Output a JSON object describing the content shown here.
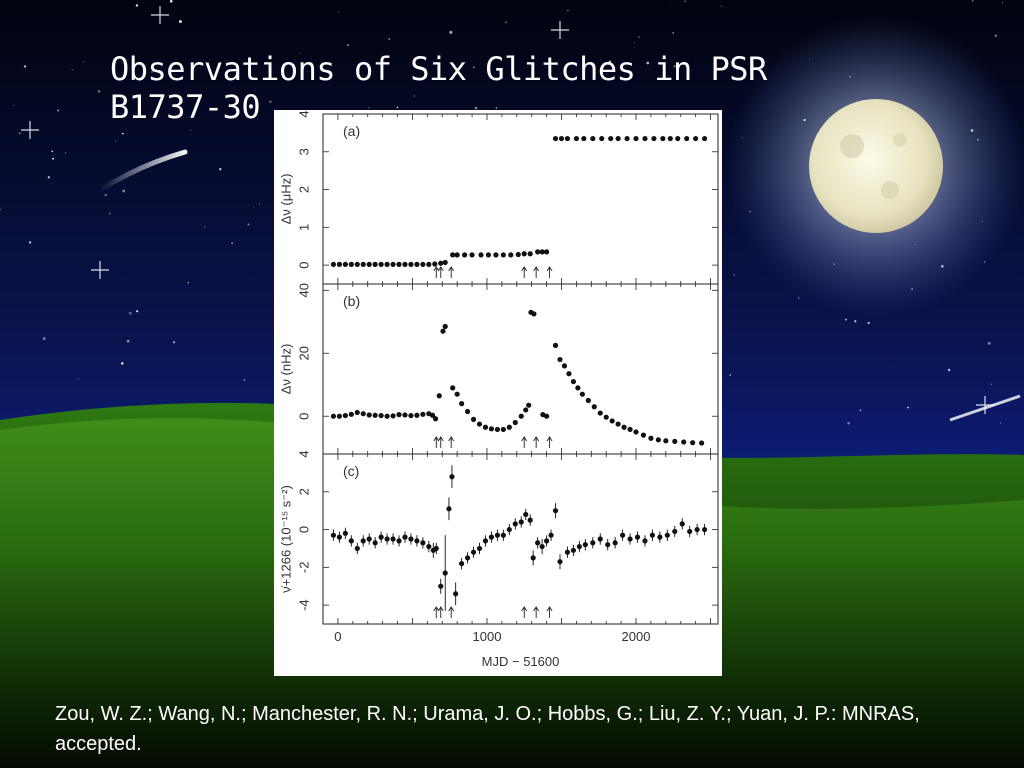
{
  "slide": {
    "title": "Observations of Six Glitches in PSR B1737-30",
    "caption": "Zou, W. Z.; Wang, N.; Manchester, R. N.; Urama, J. O.; Hobbs, G.; Liu, Z. Y.; Yuan, J. P.: MNRAS, accepted.",
    "colors": {
      "sky_top": "#020517",
      "sky_mid": "#0a1560",
      "grass": "#2f7a12",
      "text": "#ffffff"
    }
  },
  "chart_data": [
    {
      "type": "scatter",
      "panel_label": "(a)",
      "ylabel": "Δν (μHz)",
      "ylim": [
        -0.5,
        4
      ],
      "yticks": [
        0,
        1,
        2,
        3,
        4
      ],
      "xlim": [
        -100,
        2550
      ],
      "glitch_epochs": [
        660,
        690,
        760,
        1250,
        1330,
        1420
      ],
      "points": [
        [
          -30,
          0.02
        ],
        [
          10,
          0.02
        ],
        [
          50,
          0.02
        ],
        [
          90,
          0.02
        ],
        [
          130,
          0.02
        ],
        [
          170,
          0.02
        ],
        [
          210,
          0.02
        ],
        [
          250,
          0.02
        ],
        [
          290,
          0.02
        ],
        [
          330,
          0.02
        ],
        [
          370,
          0.02
        ],
        [
          410,
          0.02
        ],
        [
          450,
          0.02
        ],
        [
          490,
          0.02
        ],
        [
          530,
          0.02
        ],
        [
          570,
          0.02
        ],
        [
          610,
          0.02
        ],
        [
          650,
          0.03
        ],
        [
          690,
          0.05
        ],
        [
          720,
          0.07
        ],
        [
          770,
          0.27
        ],
        [
          800,
          0.27
        ],
        [
          850,
          0.27
        ],
        [
          900,
          0.27
        ],
        [
          960,
          0.27
        ],
        [
          1010,
          0.27
        ],
        [
          1060,
          0.27
        ],
        [
          1110,
          0.27
        ],
        [
          1160,
          0.27
        ],
        [
          1210,
          0.28
        ],
        [
          1250,
          0.3
        ],
        [
          1290,
          0.3
        ],
        [
          1340,
          0.35
        ],
        [
          1370,
          0.35
        ],
        [
          1400,
          0.35
        ],
        [
          1460,
          3.35
        ],
        [
          1500,
          3.35
        ],
        [
          1540,
          3.35
        ],
        [
          1600,
          3.35
        ],
        [
          1650,
          3.35
        ],
        [
          1710,
          3.35
        ],
        [
          1770,
          3.35
        ],
        [
          1830,
          3.35
        ],
        [
          1880,
          3.35
        ],
        [
          1940,
          3.35
        ],
        [
          2000,
          3.35
        ],
        [
          2060,
          3.35
        ],
        [
          2120,
          3.35
        ],
        [
          2180,
          3.35
        ],
        [
          2230,
          3.35
        ],
        [
          2280,
          3.35
        ],
        [
          2340,
          3.35
        ],
        [
          2400,
          3.35
        ],
        [
          2460,
          3.35
        ]
      ]
    },
    {
      "type": "scatter",
      "panel_label": "(b)",
      "ylabel": "Δν (nHz)",
      "ylim": [
        -12,
        42
      ],
      "yticks": [
        0,
        20,
        40
      ],
      "xlim": [
        -100,
        2550
      ],
      "glitch_epochs": [
        660,
        690,
        760,
        1250,
        1330,
        1420
      ],
      "points": [
        [
          -30,
          0
        ],
        [
          10,
          0
        ],
        [
          50,
          0.2
        ],
        [
          90,
          0.6
        ],
        [
          130,
          1.2
        ],
        [
          170,
          0.8
        ],
        [
          210,
          0.4
        ],
        [
          250,
          0.3
        ],
        [
          290,
          0.2
        ],
        [
          330,
          0
        ],
        [
          370,
          0.1
        ],
        [
          410,
          0.5
        ],
        [
          450,
          0.4
        ],
        [
          490,
          0.2
        ],
        [
          530,
          0.3
        ],
        [
          570,
          0.6
        ],
        [
          610,
          0.8
        ],
        [
          635,
          0.3
        ],
        [
          655,
          -0.8
        ],
        [
          680,
          6.5
        ],
        [
          705,
          27
        ],
        [
          720,
          28.5
        ],
        [
          770,
          9
        ],
        [
          800,
          7
        ],
        [
          830,
          4
        ],
        [
          870,
          1.5
        ],
        [
          910,
          -1
        ],
        [
          950,
          -2.5
        ],
        [
          990,
          -3.5
        ],
        [
          1030,
          -4
        ],
        [
          1070,
          -4.2
        ],
        [
          1110,
          -4.2
        ],
        [
          1150,
          -3.5
        ],
        [
          1190,
          -2
        ],
        [
          1230,
          0
        ],
        [
          1260,
          2
        ],
        [
          1280,
          3.5
        ],
        [
          1295,
          33
        ],
        [
          1315,
          32.5
        ],
        [
          1375,
          0.5
        ],
        [
          1400,
          0
        ],
        [
          1460,
          22.5
        ],
        [
          1490,
          18
        ],
        [
          1520,
          16
        ],
        [
          1550,
          13.5
        ],
        [
          1580,
          11
        ],
        [
          1610,
          9
        ],
        [
          1640,
          7
        ],
        [
          1680,
          5
        ],
        [
          1720,
          3
        ],
        [
          1760,
          1
        ],
        [
          1800,
          -0.3
        ],
        [
          1840,
          -1.5
        ],
        [
          1880,
          -2.5
        ],
        [
          1920,
          -3.5
        ],
        [
          1960,
          -4.2
        ],
        [
          2000,
          -5
        ],
        [
          2050,
          -6
        ],
        [
          2100,
          -7
        ],
        [
          2150,
          -7.5
        ],
        [
          2200,
          -7.8
        ],
        [
          2260,
          -8
        ],
        [
          2320,
          -8.2
        ],
        [
          2380,
          -8.4
        ],
        [
          2440,
          -8.5
        ]
      ]
    },
    {
      "type": "scatter",
      "panel_label": "(c)",
      "ylabel": "ν̇+1266 (10⁻¹⁵ s⁻²)",
      "ylim": [
        -5,
        4
      ],
      "yticks": [
        -4,
        -2,
        0,
        2,
        4
      ],
      "xlim": [
        -100,
        2550
      ],
      "xticks": [
        0,
        1000,
        2000
      ],
      "xlabel": "MJD − 51600",
      "glitch_epochs": [
        660,
        690,
        760,
        1250,
        1330,
        1420
      ],
      "points": [
        [
          -30,
          -0.3,
          0.3
        ],
        [
          10,
          -0.4,
          0.3
        ],
        [
          50,
          -0.2,
          0.3
        ],
        [
          90,
          -0.6,
          0.3
        ],
        [
          130,
          -1.0,
          0.3
        ],
        [
          170,
          -0.6,
          0.3
        ],
        [
          210,
          -0.5,
          0.3
        ],
        [
          250,
          -0.7,
          0.3
        ],
        [
          290,
          -0.4,
          0.3
        ],
        [
          330,
          -0.5,
          0.3
        ],
        [
          370,
          -0.5,
          0.3
        ],
        [
          410,
          -0.6,
          0.3
        ],
        [
          450,
          -0.4,
          0.3
        ],
        [
          490,
          -0.5,
          0.3
        ],
        [
          530,
          -0.6,
          0.3
        ],
        [
          570,
          -0.7,
          0.3
        ],
        [
          610,
          -0.9,
          0.3
        ],
        [
          640,
          -1.1,
          0.4
        ],
        [
          660,
          -1.0,
          0.3
        ],
        [
          690,
          -3,
          0.4
        ],
        [
          720,
          -2.3,
          2
        ],
        [
          745,
          1.1,
          0.6
        ],
        [
          765,
          2.8,
          0.6
        ],
        [
          790,
          -3.4,
          0.6
        ],
        [
          830,
          -1.8,
          0.3
        ],
        [
          870,
          -1.5,
          0.3
        ],
        [
          910,
          -1.2,
          0.3
        ],
        [
          950,
          -1.0,
          0.3
        ],
        [
          990,
          -0.6,
          0.3
        ],
        [
          1030,
          -0.4,
          0.3
        ],
        [
          1070,
          -0.3,
          0.3
        ],
        [
          1110,
          -0.3,
          0.3
        ],
        [
          1150,
          0,
          0.3
        ],
        [
          1190,
          0.3,
          0.3
        ],
        [
          1230,
          0.4,
          0.3
        ],
        [
          1260,
          0.8,
          0.3
        ],
        [
          1290,
          0.5,
          0.3
        ],
        [
          1310,
          -1.5,
          0.4
        ],
        [
          1340,
          -0.7,
          0.3
        ],
        [
          1370,
          -0.9,
          0.4
        ],
        [
          1400,
          -0.6,
          0.3
        ],
        [
          1430,
          -0.3,
          0.3
        ],
        [
          1460,
          1,
          0.4
        ],
        [
          1490,
          -1.7,
          0.4
        ],
        [
          1540,
          -1.2,
          0.3
        ],
        [
          1580,
          -1.1,
          0.3
        ],
        [
          1620,
          -0.9,
          0.3
        ],
        [
          1660,
          -0.8,
          0.3
        ],
        [
          1710,
          -0.7,
          0.3
        ],
        [
          1760,
          -0.5,
          0.3
        ],
        [
          1810,
          -0.8,
          0.3
        ],
        [
          1860,
          -0.7,
          0.3
        ],
        [
          1910,
          -0.3,
          0.3
        ],
        [
          1960,
          -0.5,
          0.3
        ],
        [
          2010,
          -0.4,
          0.3
        ],
        [
          2060,
          -0.6,
          0.3
        ],
        [
          2110,
          -0.3,
          0.3
        ],
        [
          2160,
          -0.4,
          0.3
        ],
        [
          2210,
          -0.3,
          0.3
        ],
        [
          2260,
          -0.1,
          0.3
        ],
        [
          2310,
          0.3,
          0.3
        ],
        [
          2360,
          -0.1,
          0.3
        ],
        [
          2410,
          0,
          0.3
        ],
        [
          2460,
          0,
          0.3
        ]
      ]
    }
  ]
}
